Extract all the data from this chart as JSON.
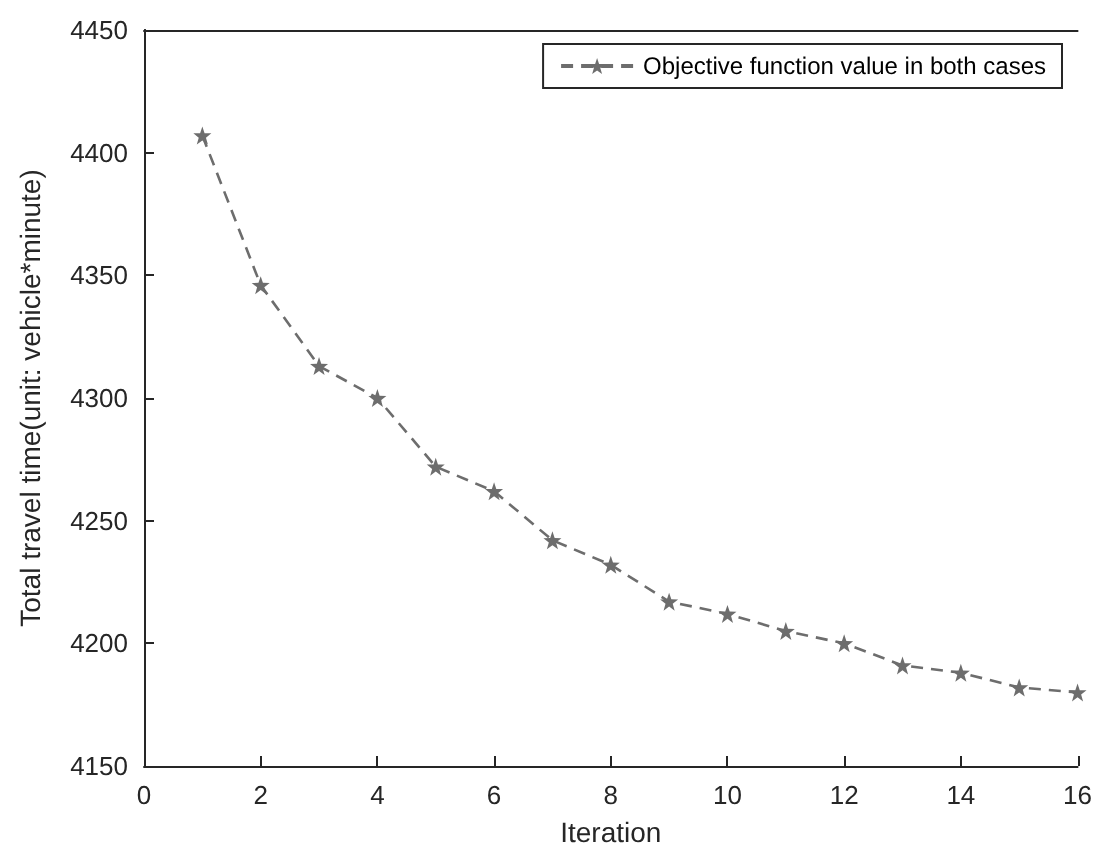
{
  "chart_data": {
    "type": "line",
    "xlabel": "Iteration",
    "ylabel": "Total travel time(unit: vehicle*minute)",
    "x": [
      1,
      2,
      3,
      4,
      5,
      6,
      7,
      8,
      9,
      10,
      11,
      12,
      13,
      14,
      15,
      16
    ],
    "series": [
      {
        "name": "Objective function value in both cases",
        "color": "#6d6d6d",
        "values": [
          4407,
          4346,
          4313,
          4300,
          4272,
          4262,
          4242,
          4232,
          4217,
          4212,
          4205,
          4200,
          4191,
          4188,
          4182,
          4180
        ]
      }
    ],
    "xlim": [
      0,
      16
    ],
    "xticks": [
      0,
      2,
      4,
      6,
      8,
      10,
      12,
      14,
      16
    ],
    "ylim": [
      4150,
      4450
    ],
    "yticks": [
      4150,
      4200,
      4250,
      4300,
      4350,
      4400,
      4450
    ],
    "grid": false,
    "legend": "top right",
    "marker": "star",
    "line_style": "dashed"
  }
}
